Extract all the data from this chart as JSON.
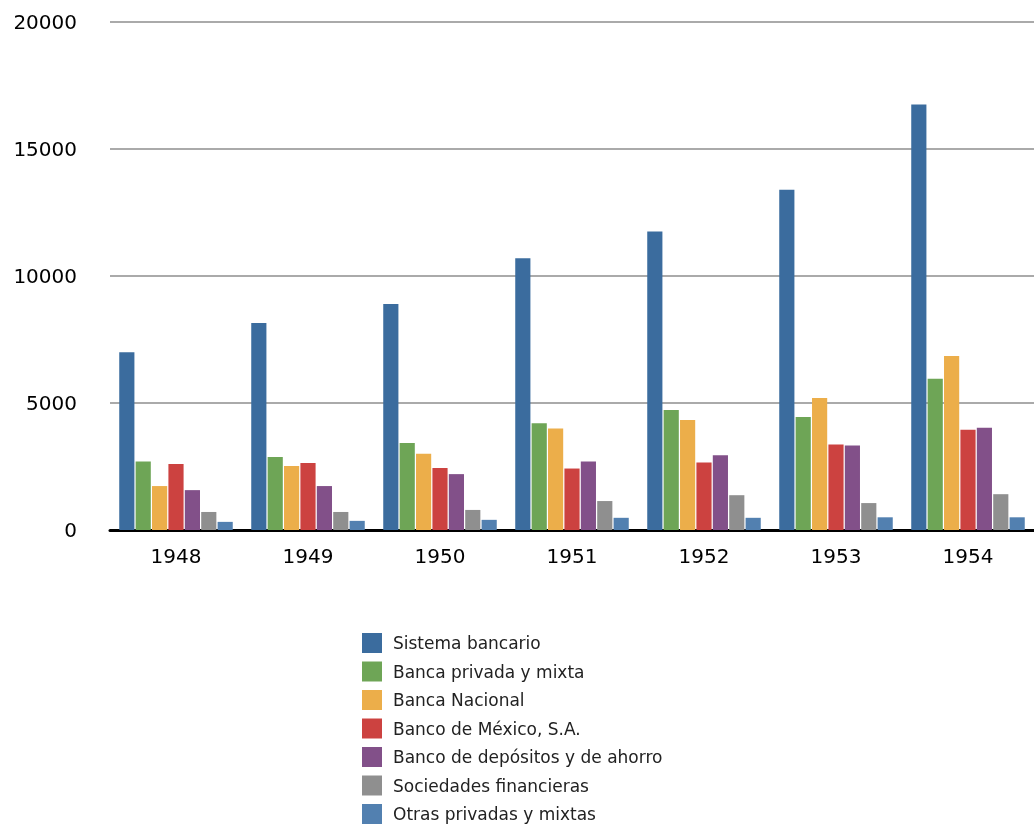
{
  "chart_data": {
    "type": "bar",
    "categories": [
      "1948",
      "1949",
      "1950",
      "1951",
      "1952",
      "1953",
      "1954"
    ],
    "series": [
      {
        "name": "Sistema bancario",
        "color": "#3b6c9e",
        "values": [
          7000,
          8150,
          8900,
          10700,
          11750,
          13400,
          16750
        ]
      },
      {
        "name": "Banca privada y mixta",
        "color": "#6ea556",
        "values": [
          2700,
          2870,
          3430,
          4200,
          4720,
          4450,
          5950
        ]
      },
      {
        "name": "Banca Nacional",
        "color": "#ecae4a",
        "values": [
          1730,
          2520,
          3000,
          4000,
          4330,
          5200,
          6850
        ]
      },
      {
        "name": "Banco de México, S.A.",
        "color": "#cc4240",
        "values": [
          2600,
          2640,
          2440,
          2420,
          2660,
          3370,
          3950
        ]
      },
      {
        "name": "Banco de depósitos y de ahorro",
        "color": "#825089",
        "values": [
          1570,
          1730,
          2200,
          2700,
          2940,
          3330,
          4030
        ]
      },
      {
        "name": "Sociedades financieras",
        "color": "#8f8f8f",
        "values": [
          710,
          710,
          790,
          1140,
          1370,
          1060,
          1410
        ]
      },
      {
        "name": "Otras privadas y mixtas",
        "color": "#5280b0",
        "values": [
          320,
          360,
          400,
          480,
          480,
          500,
          500
        ]
      }
    ],
    "ylim": [
      0,
      20000
    ],
    "yticks": [
      0,
      5000,
      10000,
      15000,
      20000
    ],
    "grid": "y",
    "legend": "bottom"
  }
}
